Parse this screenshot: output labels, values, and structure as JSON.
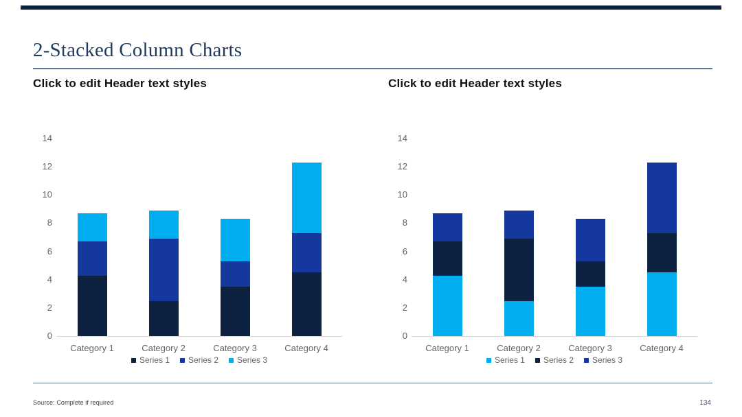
{
  "slide": {
    "title": "2-Stacked Column Charts",
    "source_note": "Source: Complete if required",
    "page_number": "134",
    "accent_color": "#0c2240",
    "rule_color": "#5e7894"
  },
  "charts": [
    {
      "header": "Click to edit Header text styles"
    },
    {
      "header": "Click to edit Header text styles"
    }
  ],
  "chart_data": [
    {
      "type": "bar",
      "stacked": true,
      "title": "",
      "xlabel": "",
      "ylabel": "",
      "categories": [
        "Category 1",
        "Category 2",
        "Category 3",
        "Category 4"
      ],
      "series": [
        {
          "name": "Series 1",
          "values": [
            4.3,
            2.5,
            3.5,
            4.5
          ],
          "color": "#0c2240"
        },
        {
          "name": "Series 2",
          "values": [
            2.4,
            4.4,
            1.8,
            2.8
          ],
          "color": "#14389d"
        },
        {
          "name": "Series 3",
          "values": [
            2.0,
            2.0,
            3.0,
            5.0
          ],
          "color": "#00aeef"
        }
      ],
      "stack_totals": [
        8.7,
        8.9,
        8.3,
        12.3
      ],
      "ylim": [
        0,
        14
      ],
      "yticks": [
        0,
        2,
        4,
        6,
        8,
        10,
        12,
        14
      ],
      "grid": false,
      "legend_position": "bottom"
    },
    {
      "type": "bar",
      "stacked": true,
      "title": "",
      "xlabel": "",
      "ylabel": "",
      "categories": [
        "Category 1",
        "Category 2",
        "Category 3",
        "Category 4"
      ],
      "series": [
        {
          "name": "Series 1",
          "values": [
            4.3,
            2.5,
            3.5,
            4.5
          ],
          "color": "#00aeef"
        },
        {
          "name": "Series 2",
          "values": [
            2.4,
            4.4,
            1.8,
            2.8
          ],
          "color": "#0c2240"
        },
        {
          "name": "Series 3",
          "values": [
            2.0,
            2.0,
            3.0,
            5.0
          ],
          "color": "#14389d"
        }
      ],
      "stack_totals": [
        8.7,
        8.9,
        8.3,
        12.3
      ],
      "ylim": [
        0,
        14
      ],
      "yticks": [
        0,
        2,
        4,
        6,
        8,
        10,
        12,
        14
      ],
      "grid": false,
      "legend_position": "bottom"
    }
  ]
}
